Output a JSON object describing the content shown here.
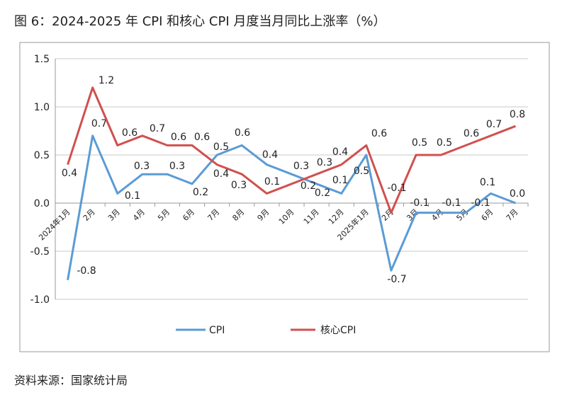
{
  "title": "图 6：2024-2025 年 CPI 和核心 CPI 月度当月同比上涨率（%）",
  "source": "资料来源：国家统计局",
  "chart_data": {
    "type": "line",
    "title": "",
    "xlabel": "",
    "ylabel": "",
    "ylim": [
      -1.0,
      1.5
    ],
    "yticks": [
      "1.5",
      "1.0",
      "0.5",
      "0.0",
      "-0.5",
      "-1.0"
    ],
    "ytick_values": [
      1.5,
      1.0,
      0.5,
      0.0,
      -0.5,
      -1.0
    ],
    "grid": true,
    "legend": "bottom",
    "categories": [
      "2024年1月",
      "2月",
      "3月",
      "4月",
      "5月",
      "6月",
      "7月",
      "8月",
      "9月",
      "10月",
      "11月",
      "12月",
      "2025年1月",
      "2月",
      "3月",
      "4月",
      "5月",
      "6月",
      "7月"
    ],
    "series": [
      {
        "name": "CPI",
        "color": "#5b9bd5",
        "values": [
          -0.8,
          0.7,
          0.1,
          0.3,
          0.3,
          0.2,
          0.5,
          0.6,
          0.4,
          0.3,
          0.2,
          0.1,
          0.5,
          -0.7,
          -0.1,
          -0.1,
          -0.1,
          0.1,
          0.0
        ]
      },
      {
        "name": "核心CPI",
        "color": "#d0504e",
        "values": [
          0.4,
          1.2,
          0.6,
          0.7,
          0.6,
          0.6,
          0.4,
          0.3,
          0.1,
          0.2,
          0.3,
          0.4,
          0.6,
          -0.1,
          0.5,
          0.5,
          0.6,
          0.7,
          0.8
        ]
      }
    ]
  }
}
